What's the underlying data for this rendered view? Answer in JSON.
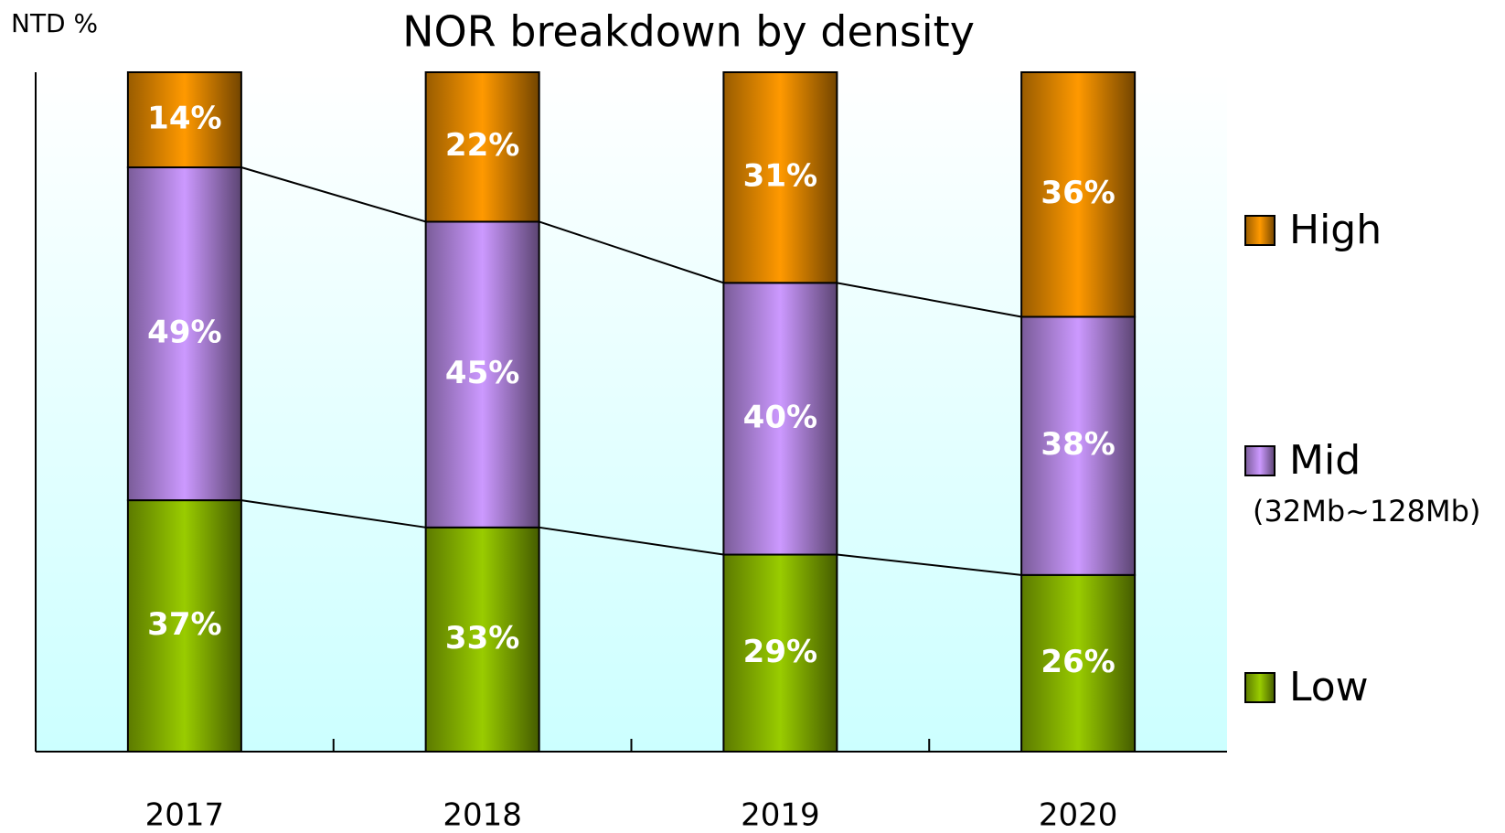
{
  "chart_data": {
    "type": "stacked_bar",
    "title": "NOR breakdown by density",
    "y_label": "NTD %",
    "categories": [
      "2017",
      "2018",
      "2019",
      "2020"
    ],
    "ylim": [
      0,
      100
    ],
    "series": [
      {
        "name": "Low",
        "color": "#99cc00",
        "values": [
          37,
          33,
          29,
          26
        ],
        "value_labels": [
          "37%",
          "33%",
          "29%",
          "26%"
        ]
      },
      {
        "name": "Mid",
        "note": "(32Mb~128Mb)",
        "color": "#cc99ff",
        "values": [
          49,
          45,
          40,
          38
        ],
        "value_labels": [
          "49%",
          "45%",
          "40%",
          "38%"
        ]
      },
      {
        "name": "High",
        "color": "#ff9900",
        "values": [
          14,
          22,
          31,
          36
        ],
        "value_labels": [
          "14%",
          "22%",
          "31%",
          "36%"
        ]
      }
    ]
  }
}
